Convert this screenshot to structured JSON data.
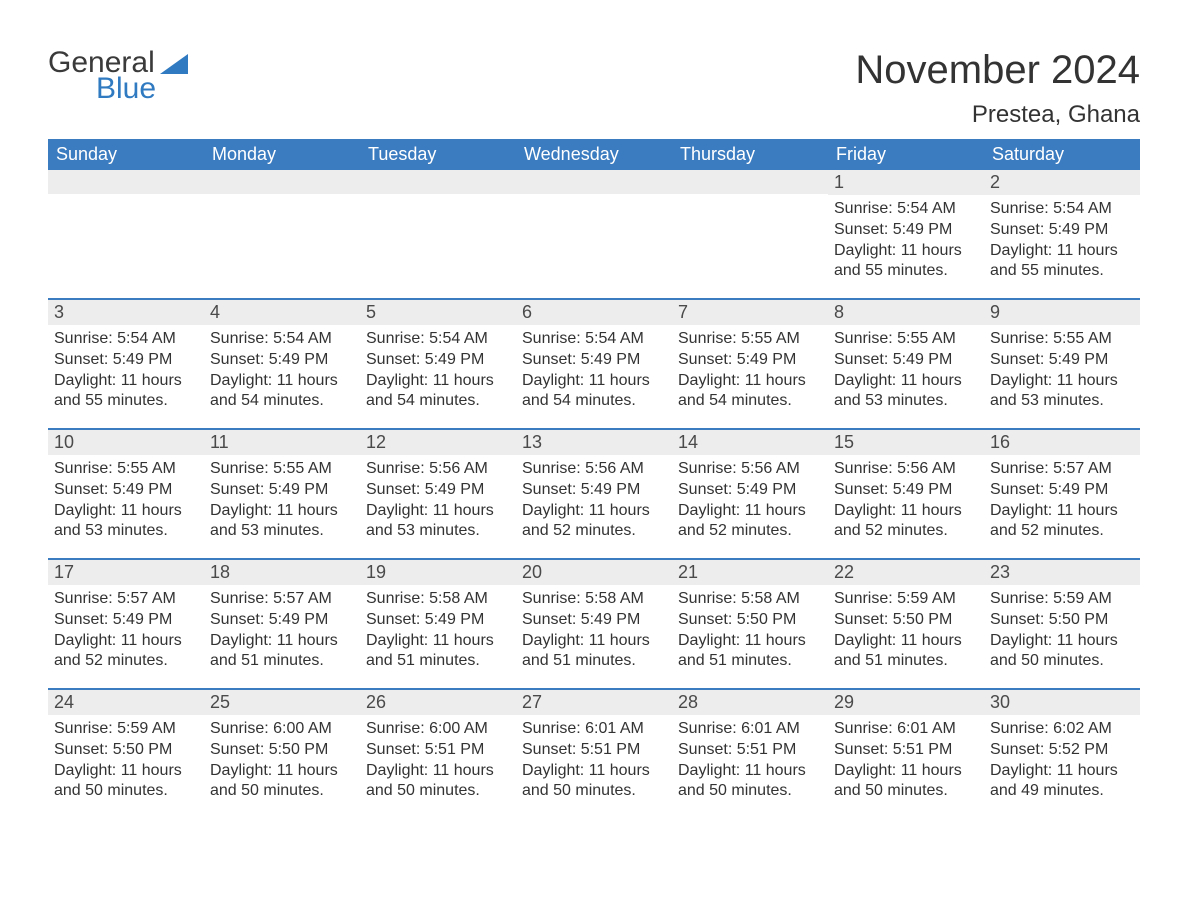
{
  "logo": {
    "general": "General",
    "blue": "Blue",
    "shape_color": "#2f7ac0"
  },
  "title": "November 2024",
  "location": "Prestea, Ghana",
  "colors": {
    "header_bg": "#3b7bbf",
    "header_text": "#ffffff",
    "daynum_bg": "#ededed",
    "rule": "#3b7bbf",
    "body_text": "#333333"
  },
  "days_of_week": [
    "Sunday",
    "Monday",
    "Tuesday",
    "Wednesday",
    "Thursday",
    "Friday",
    "Saturday"
  ],
  "weeks": [
    [
      {
        "day": "",
        "sunrise": "",
        "sunset": "",
        "daylight": ""
      },
      {
        "day": "",
        "sunrise": "",
        "sunset": "",
        "daylight": ""
      },
      {
        "day": "",
        "sunrise": "",
        "sunset": "",
        "daylight": ""
      },
      {
        "day": "",
        "sunrise": "",
        "sunset": "",
        "daylight": ""
      },
      {
        "day": "",
        "sunrise": "",
        "sunset": "",
        "daylight": ""
      },
      {
        "day": "1",
        "sunrise": "Sunrise: 5:54 AM",
        "sunset": "Sunset: 5:49 PM",
        "daylight": "Daylight: 11 hours and 55 minutes."
      },
      {
        "day": "2",
        "sunrise": "Sunrise: 5:54 AM",
        "sunset": "Sunset: 5:49 PM",
        "daylight": "Daylight: 11 hours and 55 minutes."
      }
    ],
    [
      {
        "day": "3",
        "sunrise": "Sunrise: 5:54 AM",
        "sunset": "Sunset: 5:49 PM",
        "daylight": "Daylight: 11 hours and 55 minutes."
      },
      {
        "day": "4",
        "sunrise": "Sunrise: 5:54 AM",
        "sunset": "Sunset: 5:49 PM",
        "daylight": "Daylight: 11 hours and 54 minutes."
      },
      {
        "day": "5",
        "sunrise": "Sunrise: 5:54 AM",
        "sunset": "Sunset: 5:49 PM",
        "daylight": "Daylight: 11 hours and 54 minutes."
      },
      {
        "day": "6",
        "sunrise": "Sunrise: 5:54 AM",
        "sunset": "Sunset: 5:49 PM",
        "daylight": "Daylight: 11 hours and 54 minutes."
      },
      {
        "day": "7",
        "sunrise": "Sunrise: 5:55 AM",
        "sunset": "Sunset: 5:49 PM",
        "daylight": "Daylight: 11 hours and 54 minutes."
      },
      {
        "day": "8",
        "sunrise": "Sunrise: 5:55 AM",
        "sunset": "Sunset: 5:49 PM",
        "daylight": "Daylight: 11 hours and 53 minutes."
      },
      {
        "day": "9",
        "sunrise": "Sunrise: 5:55 AM",
        "sunset": "Sunset: 5:49 PM",
        "daylight": "Daylight: 11 hours and 53 minutes."
      }
    ],
    [
      {
        "day": "10",
        "sunrise": "Sunrise: 5:55 AM",
        "sunset": "Sunset: 5:49 PM",
        "daylight": "Daylight: 11 hours and 53 minutes."
      },
      {
        "day": "11",
        "sunrise": "Sunrise: 5:55 AM",
        "sunset": "Sunset: 5:49 PM",
        "daylight": "Daylight: 11 hours and 53 minutes."
      },
      {
        "day": "12",
        "sunrise": "Sunrise: 5:56 AM",
        "sunset": "Sunset: 5:49 PM",
        "daylight": "Daylight: 11 hours and 53 minutes."
      },
      {
        "day": "13",
        "sunrise": "Sunrise: 5:56 AM",
        "sunset": "Sunset: 5:49 PM",
        "daylight": "Daylight: 11 hours and 52 minutes."
      },
      {
        "day": "14",
        "sunrise": "Sunrise: 5:56 AM",
        "sunset": "Sunset: 5:49 PM",
        "daylight": "Daylight: 11 hours and 52 minutes."
      },
      {
        "day": "15",
        "sunrise": "Sunrise: 5:56 AM",
        "sunset": "Sunset: 5:49 PM",
        "daylight": "Daylight: 11 hours and 52 minutes."
      },
      {
        "day": "16",
        "sunrise": "Sunrise: 5:57 AM",
        "sunset": "Sunset: 5:49 PM",
        "daylight": "Daylight: 11 hours and 52 minutes."
      }
    ],
    [
      {
        "day": "17",
        "sunrise": "Sunrise: 5:57 AM",
        "sunset": "Sunset: 5:49 PM",
        "daylight": "Daylight: 11 hours and 52 minutes."
      },
      {
        "day": "18",
        "sunrise": "Sunrise: 5:57 AM",
        "sunset": "Sunset: 5:49 PM",
        "daylight": "Daylight: 11 hours and 51 minutes."
      },
      {
        "day": "19",
        "sunrise": "Sunrise: 5:58 AM",
        "sunset": "Sunset: 5:49 PM",
        "daylight": "Daylight: 11 hours and 51 minutes."
      },
      {
        "day": "20",
        "sunrise": "Sunrise: 5:58 AM",
        "sunset": "Sunset: 5:49 PM",
        "daylight": "Daylight: 11 hours and 51 minutes."
      },
      {
        "day": "21",
        "sunrise": "Sunrise: 5:58 AM",
        "sunset": "Sunset: 5:50 PM",
        "daylight": "Daylight: 11 hours and 51 minutes."
      },
      {
        "day": "22",
        "sunrise": "Sunrise: 5:59 AM",
        "sunset": "Sunset: 5:50 PM",
        "daylight": "Daylight: 11 hours and 51 minutes."
      },
      {
        "day": "23",
        "sunrise": "Sunrise: 5:59 AM",
        "sunset": "Sunset: 5:50 PM",
        "daylight": "Daylight: 11 hours and 50 minutes."
      }
    ],
    [
      {
        "day": "24",
        "sunrise": "Sunrise: 5:59 AM",
        "sunset": "Sunset: 5:50 PM",
        "daylight": "Daylight: 11 hours and 50 minutes."
      },
      {
        "day": "25",
        "sunrise": "Sunrise: 6:00 AM",
        "sunset": "Sunset: 5:50 PM",
        "daylight": "Daylight: 11 hours and 50 minutes."
      },
      {
        "day": "26",
        "sunrise": "Sunrise: 6:00 AM",
        "sunset": "Sunset: 5:51 PM",
        "daylight": "Daylight: 11 hours and 50 minutes."
      },
      {
        "day": "27",
        "sunrise": "Sunrise: 6:01 AM",
        "sunset": "Sunset: 5:51 PM",
        "daylight": "Daylight: 11 hours and 50 minutes."
      },
      {
        "day": "28",
        "sunrise": "Sunrise: 6:01 AM",
        "sunset": "Sunset: 5:51 PM",
        "daylight": "Daylight: 11 hours and 50 minutes."
      },
      {
        "day": "29",
        "sunrise": "Sunrise: 6:01 AM",
        "sunset": "Sunset: 5:51 PM",
        "daylight": "Daylight: 11 hours and 50 minutes."
      },
      {
        "day": "30",
        "sunrise": "Sunrise: 6:02 AM",
        "sunset": "Sunset: 5:52 PM",
        "daylight": "Daylight: 11 hours and 49 minutes."
      }
    ]
  ]
}
